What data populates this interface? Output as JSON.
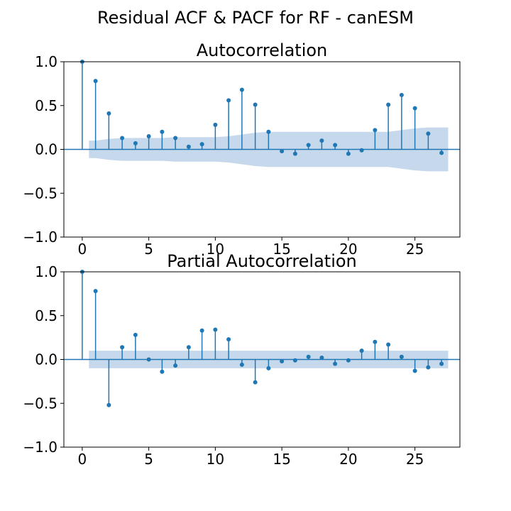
{
  "figure": {
    "title": "Residual ACF & PACF for RF - canESM"
  },
  "style": {
    "marker_color": "#1f77b4",
    "band_color": "#c6d9ec",
    "axis_color": "#000000"
  },
  "chart_data": [
    {
      "type": "stem",
      "title": "Autocorrelation",
      "xlim": [
        -1.38,
        28.38
      ],
      "ylim": [
        -1,
        1
      ],
      "xticks": [
        0,
        5,
        10,
        15,
        20,
        25
      ],
      "yticks": [
        1.0,
        0.5,
        0.0,
        -0.5,
        -1.0
      ],
      "ytick_labels": [
        "1.0",
        "0.5",
        "0.0",
        "−0.5",
        "−1.0"
      ],
      "lags": [
        0,
        1,
        2,
        3,
        4,
        5,
        6,
        7,
        8,
        9,
        10,
        11,
        12,
        13,
        14,
        15,
        16,
        17,
        18,
        19,
        20,
        21,
        22,
        23,
        24,
        25,
        26,
        27
      ],
      "values": [
        1.0,
        0.78,
        0.41,
        0.13,
        0.07,
        0.15,
        0.2,
        0.13,
        0.03,
        0.06,
        0.28,
        0.56,
        0.68,
        0.51,
        0.2,
        -0.02,
        -0.05,
        0.05,
        0.1,
        0.05,
        -0.05,
        -0.01,
        0.22,
        0.51,
        0.62,
        0.47,
        0.18,
        -0.04
      ],
      "confint_lags": [
        0.5,
        1,
        2,
        3,
        4,
        5,
        6,
        7,
        8,
        9,
        10,
        11,
        12,
        13,
        14,
        15,
        16,
        17,
        18,
        19,
        20,
        21,
        22,
        23,
        24,
        25,
        26,
        27,
        27.5
      ],
      "confint_upper": [
        0.1,
        0.1,
        0.12,
        0.13,
        0.13,
        0.13,
        0.13,
        0.14,
        0.14,
        0.14,
        0.14,
        0.15,
        0.17,
        0.19,
        0.2,
        0.2,
        0.2,
        0.2,
        0.2,
        0.2,
        0.2,
        0.2,
        0.2,
        0.2,
        0.22,
        0.24,
        0.25,
        0.25,
        0.25
      ]
    },
    {
      "type": "stem",
      "title": "Partial Autocorrelation",
      "xlim": [
        -1.38,
        28.38
      ],
      "ylim": [
        -1,
        1
      ],
      "xticks": [
        0,
        5,
        10,
        15,
        20,
        25
      ],
      "yticks": [
        1.0,
        0.5,
        0.0,
        -0.5,
        -1.0
      ],
      "ytick_labels": [
        "1.0",
        "0.5",
        "0.0",
        "−0.5",
        "−1.0"
      ],
      "lags": [
        0,
        1,
        2,
        3,
        4,
        5,
        6,
        7,
        8,
        9,
        10,
        11,
        12,
        13,
        14,
        15,
        16,
        17,
        18,
        19,
        20,
        21,
        22,
        23,
        24,
        25,
        26,
        27
      ],
      "values": [
        1.0,
        0.78,
        -0.52,
        0.14,
        0.28,
        0.0,
        -0.14,
        -0.07,
        0.14,
        0.33,
        0.34,
        0.23,
        -0.06,
        -0.26,
        -0.1,
        -0.02,
        -0.01,
        0.03,
        0.02,
        -0.05,
        -0.01,
        0.1,
        0.2,
        0.17,
        0.03,
        -0.13,
        -0.09,
        -0.05
      ],
      "confint_lags": [
        0.5,
        27.5
      ],
      "confint_upper": [
        0.1,
        0.1
      ]
    }
  ]
}
